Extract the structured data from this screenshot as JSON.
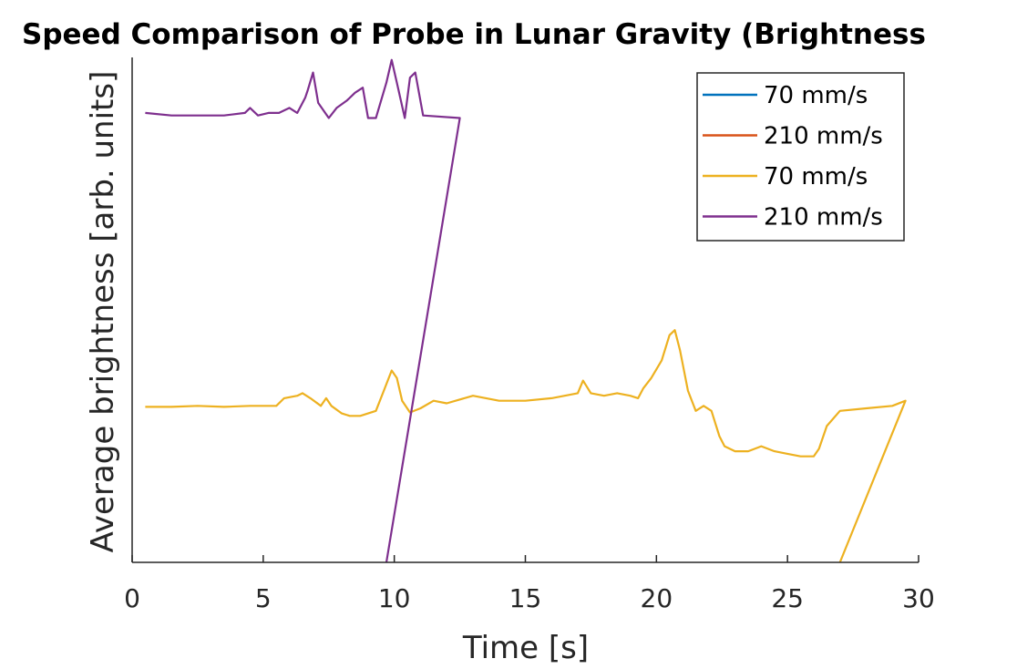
{
  "chart_data": {
    "type": "line",
    "title": "Speed Comparison of Probe in Lunar Gravity (Brightness",
    "xlabel": "Time [s]",
    "ylabel": "Average brightness [arb. units]",
    "xlim": [
      0,
      30
    ],
    "xticks": [
      0,
      5,
      10,
      15,
      20,
      25,
      30
    ],
    "ylim": [
      0,
      1
    ],
    "yticks": [],
    "grid": false,
    "legend_position": "top-right",
    "series": [
      {
        "name": "70 mm/s",
        "color": "#0072BD",
        "points": []
      },
      {
        "name": "210 mm/s",
        "color": "#D95319",
        "points": []
      },
      {
        "name": "70 mm/s",
        "color": "#EDB120",
        "points": [
          [
            0.5,
            0.308
          ],
          [
            1.5,
            0.308
          ],
          [
            2.5,
            0.31
          ],
          [
            3.5,
            0.308
          ],
          [
            4.5,
            0.31
          ],
          [
            5.2,
            0.31
          ],
          [
            5.5,
            0.31
          ],
          [
            5.8,
            0.325
          ],
          [
            6.3,
            0.33
          ],
          [
            6.5,
            0.335
          ],
          [
            6.8,
            0.325
          ],
          [
            7.2,
            0.31
          ],
          [
            7.4,
            0.325
          ],
          [
            7.6,
            0.31
          ],
          [
            8,
            0.295
          ],
          [
            8.3,
            0.29
          ],
          [
            8.7,
            0.29
          ],
          [
            9,
            0.295
          ],
          [
            9.3,
            0.3
          ],
          [
            9.6,
            0.34
          ],
          [
            9.9,
            0.38
          ],
          [
            10.1,
            0.365
          ],
          [
            10.3,
            0.32
          ],
          [
            10.6,
            0.297
          ],
          [
            11,
            0.305
          ],
          [
            11.5,
            0.32
          ],
          [
            12,
            0.315
          ],
          [
            13,
            0.33
          ],
          [
            14,
            0.32
          ],
          [
            15,
            0.32
          ],
          [
            16,
            0.325
          ],
          [
            17,
            0.335
          ],
          [
            17.2,
            0.36
          ],
          [
            17.5,
            0.335
          ],
          [
            18,
            0.33
          ],
          [
            18.5,
            0.335
          ],
          [
            19,
            0.33
          ],
          [
            19.3,
            0.325
          ],
          [
            19.5,
            0.345
          ],
          [
            19.8,
            0.365
          ],
          [
            20.2,
            0.4
          ],
          [
            20.5,
            0.45
          ],
          [
            20.7,
            0.46
          ],
          [
            20.9,
            0.42
          ],
          [
            21.2,
            0.34
          ],
          [
            21.5,
            0.3
          ],
          [
            21.8,
            0.31
          ],
          [
            22.1,
            0.3
          ],
          [
            22.4,
            0.25
          ],
          [
            22.6,
            0.23
          ],
          [
            23,
            0.22
          ],
          [
            23.5,
            0.22
          ],
          [
            24,
            0.23
          ],
          [
            24.5,
            0.22
          ],
          [
            25,
            0.215
          ],
          [
            25.5,
            0.21
          ],
          [
            26,
            0.21
          ],
          [
            26.2,
            0.225
          ],
          [
            26.5,
            0.27
          ],
          [
            27,
            0.3
          ],
          [
            28,
            0.305
          ],
          [
            29,
            0.31
          ],
          [
            29.5,
            0.32
          ],
          [
            27,
            0
          ]
        ]
      },
      {
        "name": "210 mm/s",
        "color": "#7E2F8E",
        "points": [
          [
            0.5,
            0.89
          ],
          [
            1.5,
            0.885
          ],
          [
            2.5,
            0.885
          ],
          [
            3.5,
            0.885
          ],
          [
            4.3,
            0.89
          ],
          [
            4.5,
            0.9
          ],
          [
            4.8,
            0.885
          ],
          [
            5.2,
            0.89
          ],
          [
            5.6,
            0.89
          ],
          [
            6,
            0.9
          ],
          [
            6.3,
            0.89
          ],
          [
            6.6,
            0.92
          ],
          [
            6.7,
            0.935
          ],
          [
            6.9,
            0.97
          ],
          [
            7.1,
            0.91
          ],
          [
            7.5,
            0.88
          ],
          [
            7.8,
            0.9
          ],
          [
            8.2,
            0.915
          ],
          [
            8.5,
            0.93
          ],
          [
            8.8,
            0.94
          ],
          [
            9,
            0.88
          ],
          [
            9.3,
            0.88
          ],
          [
            9.7,
            0.95
          ],
          [
            9.9,
            0.995
          ],
          [
            10.1,
            0.95
          ],
          [
            10.4,
            0.88
          ],
          [
            10.6,
            0.96
          ],
          [
            10.8,
            0.97
          ],
          [
            11.1,
            0.885
          ],
          [
            12.5,
            0.88
          ],
          [
            9.7,
            0
          ]
        ]
      }
    ]
  }
}
